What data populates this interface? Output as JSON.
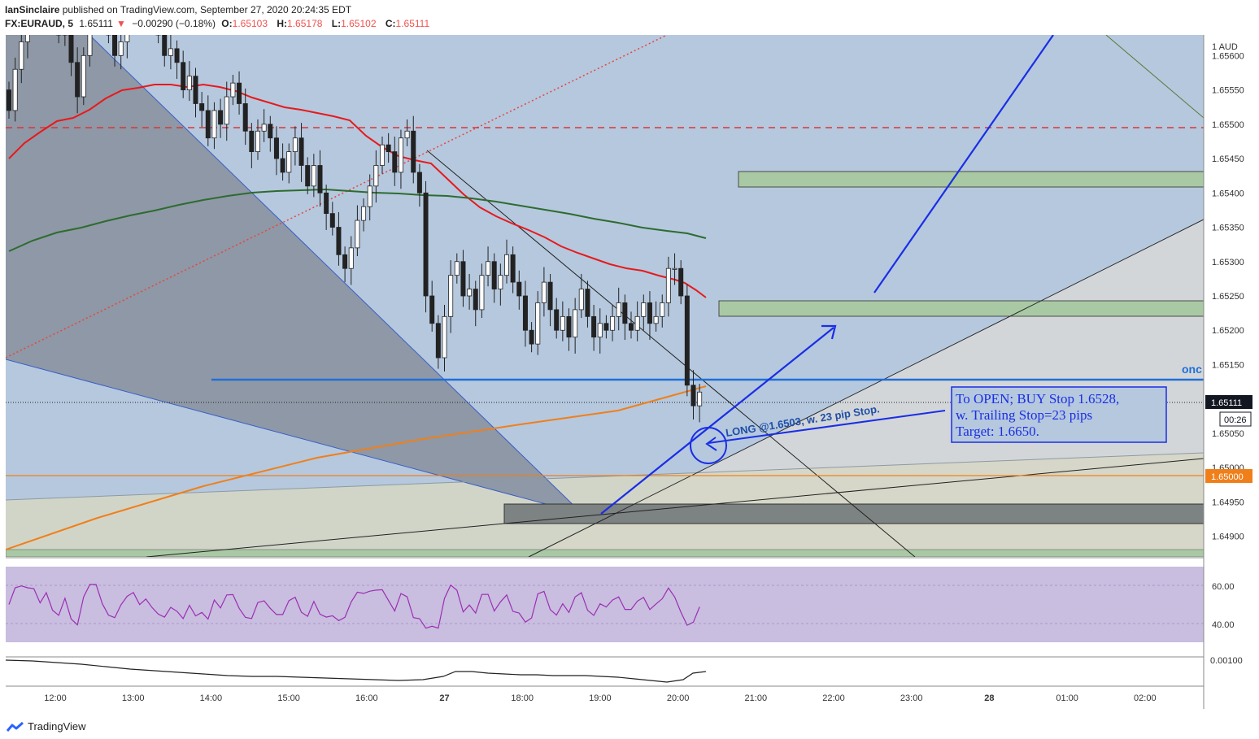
{
  "header": {
    "author": "IanSinclaire",
    "published": "published on TradingView.com, September 27, 2020 20:24:35 EDT",
    "symbol": "FX:EURAUD, 5",
    "last": "1.65111",
    "change": "−0.00290 (−0.18%)",
    "o_label": "O:",
    "o": "1.65103",
    "h_label": "H:",
    "h": "1.65178",
    "l_label": "L:",
    "l": "1.65102",
    "c_label": "C:",
    "c": "1.65111"
  },
  "footer": {
    "brand": "TradingView",
    "logo_icon": "tradingview-logo-icon"
  },
  "colors": {
    "up": "#ffffff",
    "down": "#222222",
    "ema_red": "#e8191b",
    "ema_green": "#2e6b2e",
    "trend_orange": "#f07f1a",
    "hline_blue": "#1f6fd8",
    "rsi": "#9b2fb2",
    "zone_green": "#a9c9a4"
  },
  "chart_data": [
    {
      "type": "candlestick",
      "symbol": "FX:EURAUD",
      "interval": "5",
      "ylim": [
        1.6487,
        1.6563
      ],
      "y_ticks": [
        "1 AUD",
        "1.65600",
        "1.65550",
        "1.65500",
        "1.65450",
        "1.65400",
        "1.65350",
        "1.65300",
        "1.65250",
        "1.65200",
        "1.65150",
        "1.65100",
        "1.65050",
        "1.65000",
        "1.64950",
        "1.64900"
      ],
      "x_ticks": [
        "12:00",
        "13:00",
        "14:00",
        "15:00",
        "16:00",
        "27",
        "18:00",
        "19:00",
        "20:00",
        "21:00",
        "22:00",
        "23:00",
        "28",
        "01:00",
        "02:00"
      ],
      "price_label": "1.65111",
      "countdown": "00:26",
      "level_label": "1.65000",
      "candles_close": [
        1.6552,
        1.6558,
        1.6562,
        1.6565,
        1.6568,
        1.6566,
        1.657,
        1.6566,
        1.6563,
        1.6567,
        1.6559,
        1.6554,
        1.656,
        1.6566,
        1.657,
        1.6567,
        1.6563,
        1.656,
        1.6562,
        1.6565,
        1.6568,
        1.6566,
        1.6568,
        1.6566,
        1.6563,
        1.656,
        1.6561,
        1.6559,
        1.6555,
        1.6557,
        1.6553,
        1.6552,
        1.6548,
        1.6552,
        1.655,
        1.6554,
        1.6556,
        1.6553,
        1.6549,
        1.6546,
        1.6549,
        1.655,
        1.6548,
        1.6545,
        1.6543,
        1.6546,
        1.6548,
        1.6544,
        1.6541,
        1.6544,
        1.654,
        1.6537,
        1.6535,
        1.6531,
        1.6529,
        1.6532,
        1.6536,
        1.6538,
        1.6541,
        1.6544,
        1.6547,
        1.6546,
        1.6543,
        1.6548,
        1.6549,
        1.6543,
        1.654,
        1.6525,
        1.6521,
        1.6516,
        1.6522,
        1.6528,
        1.653,
        1.6525,
        1.6526,
        1.6523,
        1.6528,
        1.653,
        1.6526,
        1.6528,
        1.6531,
        1.6527,
        1.6525,
        1.652,
        1.6518,
        1.6524,
        1.6527,
        1.6523,
        1.652,
        1.6522,
        1.6519,
        1.6523,
        1.6526,
        1.6522,
        1.6519,
        1.6521,
        1.652,
        1.6522,
        1.6524,
        1.6521,
        1.652,
        1.6522,
        1.6524,
        1.6521,
        1.6522,
        1.6524,
        1.6529,
        1.6529,
        1.6525,
        1.6512,
        1.6509,
        1.6511
      ],
      "indicators": [
        "EMA red",
        "EMA green",
        "RSI",
        "Oscillator"
      ],
      "rsi_ticks": [
        "60.00",
        "40.00"
      ],
      "osc_ticks": [
        "0.00100"
      ]
    }
  ],
  "annotations": {
    "note_line1": "To OPEN; BUY Stop 1.6528,",
    "note_line2": "w. Trailing Stop=23 pips",
    "note_line3": "Target: 1.6650.",
    "long_label": "LONG @1.6503, w. 23 pip Stop.",
    "clipped_label": "onc"
  }
}
